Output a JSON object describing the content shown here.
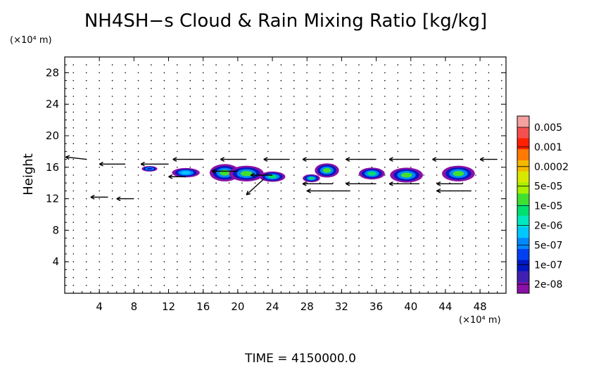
{
  "chart_data": {
    "type": "heatmap",
    "title": "NH4SH−s Cloud & Rain Mixing Ratio [kg/kg]",
    "xlabel": "",
    "ylabel": "Height",
    "x_unit": "(×10⁴ m)",
    "y_unit": "(×10⁴ m)",
    "xlim": [
      0,
      51
    ],
    "ylim": [
      0,
      30
    ],
    "x_ticks": [
      "4",
      "8",
      "12",
      "16",
      "20",
      "24",
      "28",
      "32",
      "36",
      "40",
      "44",
      "48"
    ],
    "y_ticks": [
      "4",
      "8",
      "12",
      "16",
      "20",
      "24",
      "28"
    ],
    "colorbar": {
      "labels": [
        "0.005",
        "0.001",
        "0.0002",
        "5e-05",
        "1e-05",
        "2e-06",
        "5e-07",
        "1e-07",
        "2e-08"
      ],
      "colors": [
        "#f5a0a0",
        "#f55050",
        "#ff2000",
        "#ff7a00",
        "#f5b800",
        "#d8e800",
        "#a8f000",
        "#40e030",
        "#00e070",
        "#00e8c0",
        "#00c8ff",
        "#0088ff",
        "#0040f0",
        "#0018c0",
        "#4020b0",
        "#8a10a8"
      ]
    },
    "cloud_cells": [
      {
        "x": 9.8,
        "y": 15.8,
        "w": 1.8,
        "h": 0.7,
        "level": 13
      },
      {
        "x": 14.0,
        "y": 15.3,
        "w": 3.2,
        "h": 1.2,
        "level": 10
      },
      {
        "x": 18.5,
        "y": 15.3,
        "w": 3.5,
        "h": 2.2,
        "level": 7
      },
      {
        "x": 21.0,
        "y": 15.2,
        "w": 4.0,
        "h": 2.0,
        "level": 7
      },
      {
        "x": 24.0,
        "y": 14.8,
        "w": 3.0,
        "h": 1.3,
        "level": 8
      },
      {
        "x": 28.5,
        "y": 14.6,
        "w": 2.0,
        "h": 1.0,
        "level": 8
      },
      {
        "x": 30.3,
        "y": 15.6,
        "w": 2.8,
        "h": 1.8,
        "level": 7
      },
      {
        "x": 35.5,
        "y": 15.2,
        "w": 3.0,
        "h": 1.5,
        "level": 8
      },
      {
        "x": 39.5,
        "y": 15.0,
        "w": 3.8,
        "h": 1.9,
        "level": 7
      },
      {
        "x": 45.5,
        "y": 15.2,
        "w": 3.8,
        "h": 2.0,
        "level": 7
      }
    ],
    "wind_vectors": [
      {
        "x": 2.5,
        "y": 17.0,
        "u": -2.4,
        "v": 0.3
      },
      {
        "x": 7.0,
        "y": 16.4,
        "u": -3.0,
        "v": 0.0
      },
      {
        "x": 12.0,
        "y": 16.4,
        "u": -3.2,
        "v": 0.0
      },
      {
        "x": 16.0,
        "y": 17.0,
        "u": -3.5,
        "v": 0.0
      },
      {
        "x": 21.0,
        "y": 17.0,
        "u": -3.0,
        "v": 0.0
      },
      {
        "x": 26.0,
        "y": 17.0,
        "u": -3.0,
        "v": 0.0
      },
      {
        "x": 31.0,
        "y": 17.0,
        "u": -3.5,
        "v": 0.0
      },
      {
        "x": 36.0,
        "y": 17.0,
        "u": -3.5,
        "v": 0.0
      },
      {
        "x": 41.0,
        "y": 17.0,
        "u": -3.5,
        "v": 0.0
      },
      {
        "x": 46.0,
        "y": 17.0,
        "u": -3.5,
        "v": 0.0
      },
      {
        "x": 50.0,
        "y": 17.0,
        "u": -2.0,
        "v": 0.0
      },
      {
        "x": 14.0,
        "y": 14.8,
        "u": -2.0,
        "v": 0.0
      },
      {
        "x": 20.0,
        "y": 15.5,
        "u": -3.0,
        "v": 0.0
      },
      {
        "x": 24.0,
        "y": 15.0,
        "u": -2.5,
        "v": 0.0
      },
      {
        "x": 31.0,
        "y": 13.9,
        "u": -3.5,
        "v": 0.0
      },
      {
        "x": 36.0,
        "y": 13.9,
        "u": -3.5,
        "v": 0.0
      },
      {
        "x": 41.0,
        "y": 13.9,
        "u": -3.5,
        "v": 0.0
      },
      {
        "x": 46.0,
        "y": 13.9,
        "u": -3.0,
        "v": 0.0
      },
      {
        "x": 33.0,
        "y": 13.0,
        "u": -5.0,
        "v": 0.0
      },
      {
        "x": 47.0,
        "y": 13.0,
        "u": -4.0,
        "v": 0.0
      },
      {
        "x": 23.0,
        "y": 14.5,
        "u": -2.0,
        "v": -2.0
      },
      {
        "x": 5.0,
        "y": 12.2,
        "u": -2.0,
        "v": 0.0
      },
      {
        "x": 8.0,
        "y": 12.0,
        "u": -2.0,
        "v": 0.0
      }
    ],
    "grid": true
  },
  "footer": {
    "label": "TIME = 4150000.0"
  }
}
